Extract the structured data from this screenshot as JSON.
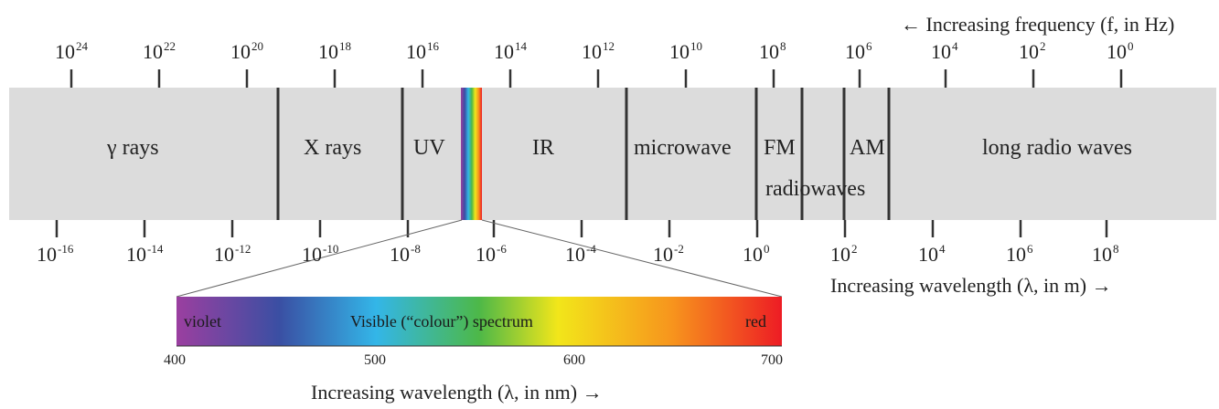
{
  "frequency_axis": {
    "caption": "← Increasing frequency (f, in Hz)",
    "base": "10",
    "exponents": [
      "24",
      "22",
      "20",
      "18",
      "16",
      "14",
      "12",
      "10",
      "8",
      "6",
      "4",
      "2",
      "0"
    ]
  },
  "wavelength_axis": {
    "caption": "Increasing wavelength (λ, in m) →",
    "base": "10",
    "exponents": [
      "-16",
      "-14",
      "-12",
      "-10",
      "-8",
      "-6",
      "-4",
      "-2",
      "0",
      "2",
      "4",
      "6",
      "8"
    ]
  },
  "bands": {
    "gamma": "γ rays",
    "xray": "X rays",
    "uv": "UV",
    "ir": "IR",
    "microwave": "microwave",
    "fm": "FM",
    "am": "AM",
    "radiowaves": "radiowaves",
    "long_radio": "long radio waves"
  },
  "visible_spectrum": {
    "title": "Visible (“colour”) spectrum",
    "left_label": "violet",
    "right_label": "red",
    "ticks": [
      "400",
      "500",
      "600",
      "700"
    ],
    "caption": "Increasing wavelength (λ, in nm) →",
    "colors": [
      "#9b3fa0",
      "#3a4fa3",
      "#33b6e8",
      "#4db848",
      "#f2e61a",
      "#f7941d",
      "#ed1c24"
    ]
  },
  "colors": {
    "band_fill": "#dcdcdc",
    "divider": "#333333"
  }
}
